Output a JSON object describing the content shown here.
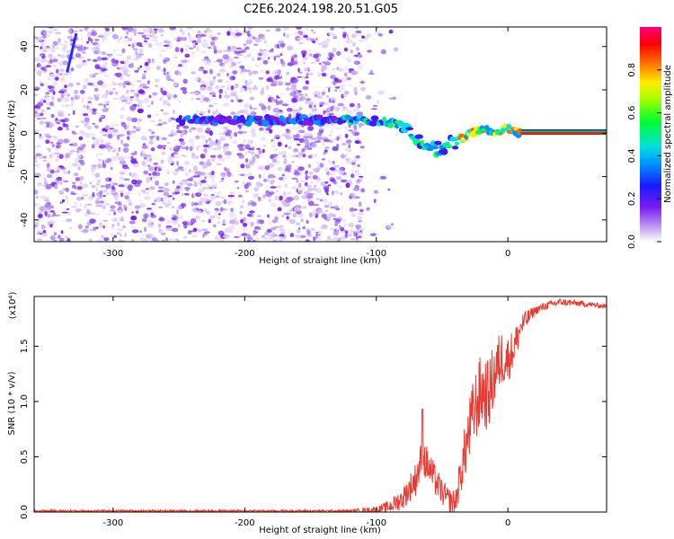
{
  "title": "C2E6.2024.198.20.51.G05",
  "chart_data": [
    {
      "type": "heatmap",
      "xlabel": "Height of straight line (km)",
      "ylabel": "Frequency (Hz)",
      "xlim": [
        -360,
        75
      ],
      "ylim": [
        -50,
        49
      ],
      "xticks": [
        -300,
        -200,
        -100,
        0
      ],
      "yticks": [
        -40,
        -20,
        0,
        20,
        40
      ],
      "colorbar": {
        "label": "Normalized spectral amplitude",
        "range": [
          0.0,
          1.0
        ],
        "ticks": [
          "0.0",
          "0.2",
          "0.4",
          "0.6",
          "0.8"
        ],
        "colormap": "white-purple-blue-cyan-green-yellow-red-magenta"
      },
      "ridge": {
        "x": [
          -250,
          -200,
          -160,
          -130,
          -110,
          -90,
          -80,
          -70,
          -60,
          -50,
          -40,
          -30,
          -20,
          -10,
          0,
          10,
          20,
          75
        ],
        "y": [
          6,
          6,
          6,
          6,
          6,
          5,
          3,
          -3,
          -8,
          -6,
          -4,
          -1,
          2,
          1,
          2,
          0,
          0,
          0
        ]
      },
      "noise_extent_x": [
        -360,
        -110
      ]
    },
    {
      "type": "line",
      "xlabel": "Height of straight line (km)",
      "ylabel": "SNR (10 * v/v)",
      "yscale_label": "(x10⁴)",
      "xlim": [
        -360,
        75
      ],
      "ylim": [
        0,
        1.95
      ],
      "xticks": [
        -300,
        -200,
        -100,
        0
      ],
      "yticks": [
        "0.0",
        "0.5",
        "1.0",
        "1.5"
      ],
      "ytick_values": [
        0,
        0.5,
        1.0,
        1.5
      ],
      "color": "#e83a30",
      "trend": {
        "x": [
          -360,
          -120,
          -100,
          -90,
          -80,
          -70,
          -65,
          -60,
          -55,
          -50,
          -45,
          -40,
          -35,
          -30,
          -25,
          -20,
          -15,
          -10,
          -5,
          0,
          5,
          10,
          20,
          30,
          40,
          50,
          60,
          75
        ],
        "y": [
          0.01,
          0.01,
          0.02,
          0.05,
          0.12,
          0.3,
          0.5,
          0.4,
          0.28,
          0.18,
          0.1,
          0.08,
          0.4,
          0.7,
          0.95,
          1.1,
          1.05,
          1.25,
          1.4,
          1.38,
          1.5,
          1.68,
          1.82,
          1.87,
          1.9,
          1.89,
          1.88,
          1.86
        ]
      },
      "noise_amplitude": [
        [
          -360,
          0.01
        ],
        [
          -120,
          0.01
        ],
        [
          -95,
          0.04
        ],
        [
          -80,
          0.1
        ],
        [
          -65,
          0.18
        ],
        [
          -50,
          0.12
        ],
        [
          -40,
          0.12
        ],
        [
          -30,
          0.3
        ],
        [
          -20,
          0.35
        ],
        [
          -10,
          0.3
        ],
        [
          0,
          0.22
        ],
        [
          10,
          0.12
        ],
        [
          20,
          0.04
        ],
        [
          75,
          0.02
        ]
      ],
      "peak": {
        "x": -65,
        "y": 0.93
      }
    }
  ]
}
